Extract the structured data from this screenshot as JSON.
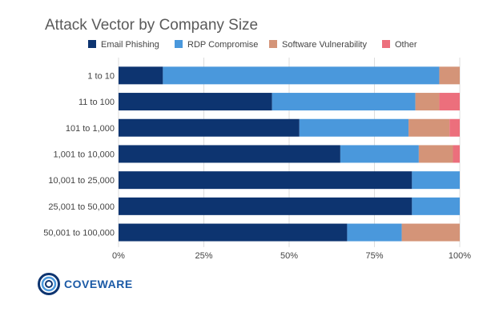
{
  "chart_data": {
    "type": "bar",
    "orientation": "horizontal",
    "stacked": true,
    "title": "Attack Vector by Company Size",
    "categories": [
      "1 to 10",
      "11 to 100",
      "101 to 1,000",
      "1,001 to 10,000",
      "10,001 to 25,000",
      "25,001 to 50,000",
      "50,001 to 100,000"
    ],
    "series": [
      {
        "name": "Email Phishing",
        "color": "#0d3470",
        "values": [
          13,
          45,
          53,
          65,
          86,
          86,
          67
        ]
      },
      {
        "name": "RDP Compromise",
        "color": "#4a98dc",
        "values": [
          81,
          42,
          32,
          23,
          14,
          14,
          16
        ]
      },
      {
        "name": "Software Vulnerability",
        "color": "#d49478",
        "values": [
          6,
          7,
          12,
          10,
          0,
          0,
          17
        ]
      },
      {
        "name": "Other",
        "color": "#ec6f7c",
        "values": [
          0,
          6,
          3,
          2,
          0,
          0,
          0
        ]
      }
    ],
    "xlim": [
      0,
      100
    ],
    "xticks": [
      "0%",
      "25%",
      "50%",
      "75%",
      "100%"
    ],
    "legend_position": "top",
    "grid": true
  },
  "logo": {
    "text": "COVEWARE"
  }
}
